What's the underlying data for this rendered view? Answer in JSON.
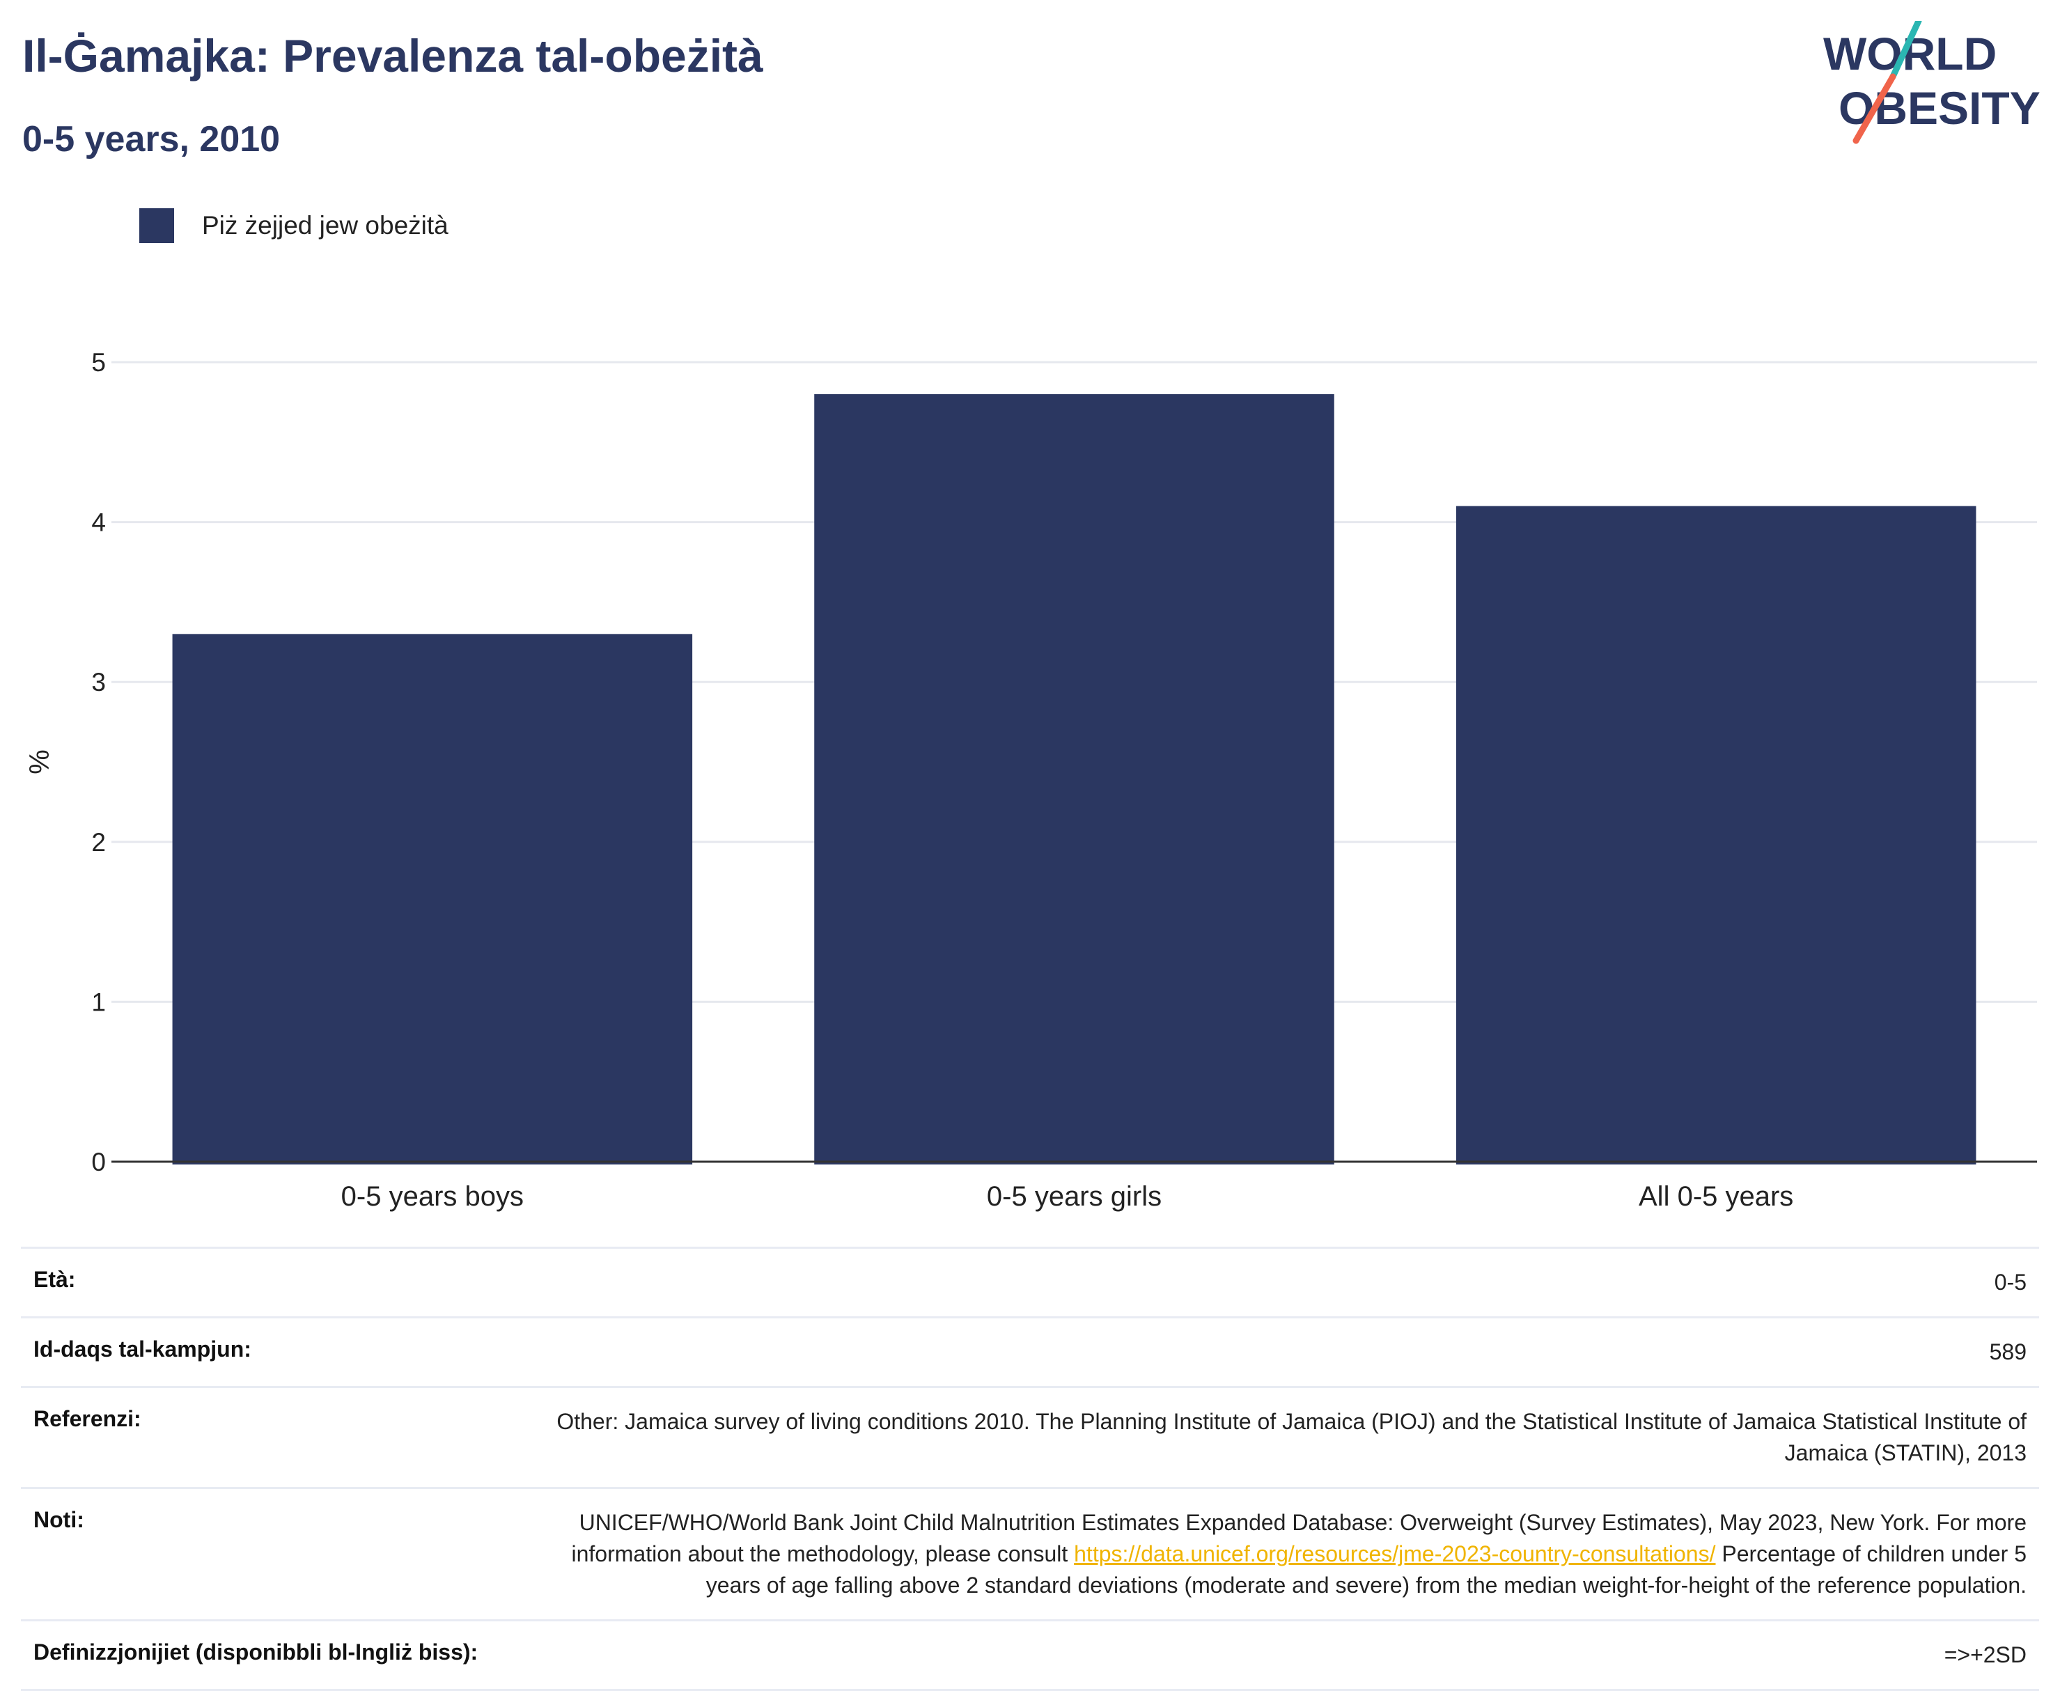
{
  "header": {
    "title": "Il-Ġamajka: Prevalenza tal-obeżità",
    "subtitle": "0-5 years, 2010"
  },
  "logo": {
    "line1": "WORLD",
    "line2": "OBESITY",
    "colors": {
      "text": "#2b3761",
      "slash_top": "#2bb6b2",
      "slash_bottom": "#f0644b"
    }
  },
  "legend": {
    "label": "Piż żejjed jew obeżità",
    "color": "#2b3761"
  },
  "chart_data": {
    "type": "bar",
    "categories": [
      "0-5 years boys",
      "0-5 years girls",
      "All 0-5 years"
    ],
    "series": [
      {
        "name": "Piż żejjed jew obeżità",
        "values": [
          3.3,
          4.8,
          4.1
        ]
      }
    ],
    "ylabel": "%",
    "ylim": [
      0,
      5
    ],
    "yticks": [
      0,
      1,
      2,
      3,
      4,
      5
    ],
    "grid": true,
    "legend_position": "top-left",
    "bar_color": "#2b3761"
  },
  "info": {
    "age": {
      "label": "Età:",
      "value": "0-5"
    },
    "sample": {
      "label": "Id-daqs tal-kampjun:",
      "value": "589"
    },
    "references": {
      "label": "Referenzi:",
      "value": "Other: Jamaica survey of living conditions 2010. The Planning Institute of Jamaica (PIOJ) and the Statistical Institute of Jamaica Statistical Institute of Jamaica (STATIN), 2013"
    },
    "notes": {
      "label": "Noti:",
      "text_before": "UNICEF/WHO/World Bank Joint Child Malnutrition Estimates Expanded Database: Overweight (Survey Estimates), May 2023, New York. For more information about the methodology, please consult ",
      "link": "https://data.unicef.org/resources/jme-2023-country-consultations/",
      "text_after": " Percentage of children under 5 years of age falling above 2 standard deviations (moderate and severe) from the median weight-for-height of the reference population."
    },
    "definitions": {
      "label": "Definizzjonijiet (disponibbli bl-Ingliż biss):",
      "value": "=>+2SD"
    }
  }
}
